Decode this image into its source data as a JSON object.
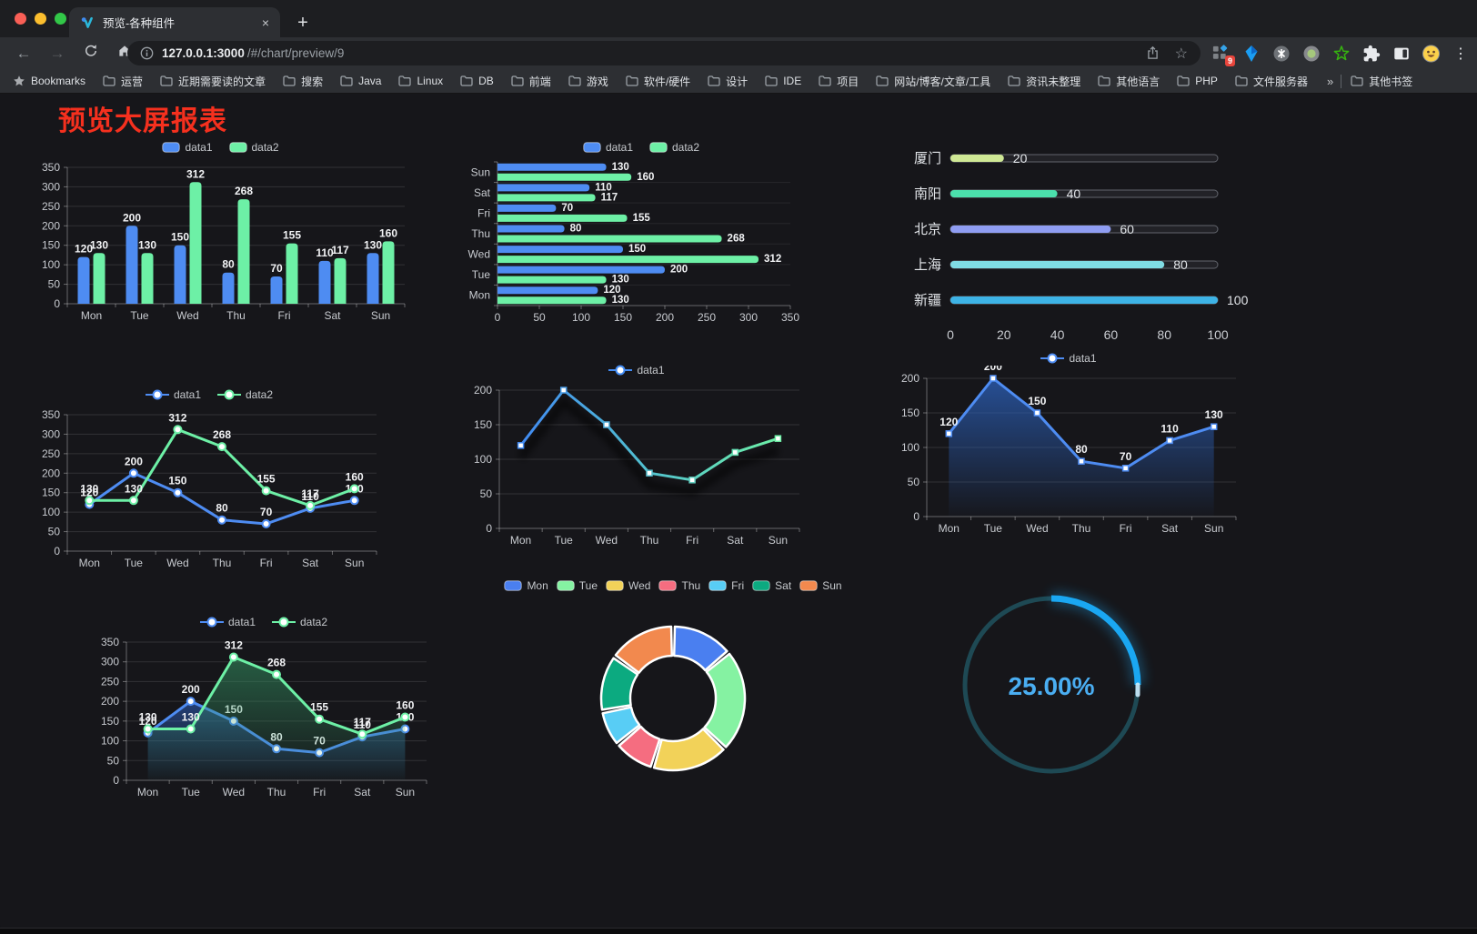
{
  "browser": {
    "tab": {
      "title": "预览-各种组件",
      "close_glyph": "×",
      "new_tab_glyph": "+"
    },
    "url": {
      "host": "127.0.0.1:3000",
      "path": "/#/chart/preview/9"
    },
    "extensions_badge": "9",
    "icons": {
      "back": "←",
      "forward": "→",
      "menu": "⋮",
      "star": "☆"
    },
    "bookmarks": {
      "star_label": "Bookmarks",
      "folders": [
        "运营",
        "近期需要读的文章",
        "搜索",
        "Java",
        "Linux",
        "DB",
        "前端",
        "游戏",
        "软件/硬件",
        "设计",
        "IDE",
        "项目",
        "网站/博客/文章/工具",
        "资讯未整理",
        "其他语言",
        "PHP",
        "文件服务器"
      ],
      "overflow_glyph": "»",
      "other_label": "其他书签"
    }
  },
  "page": {
    "title": "预览大屏报表"
  },
  "colors": {
    "page_bg": "#16161a",
    "chrome_bar": "#2d2f33",
    "frame": "#1d1e21",
    "title_red": "#f5301e",
    "series_blue": "#4e8cf2",
    "series_green": "#6df0a6",
    "axis_text": "#c8cbd0",
    "value_label": "#f2f3f5"
  },
  "chart_data": [
    {
      "id": "bar-grouped",
      "type": "bar",
      "title": "",
      "categories": [
        "Mon",
        "Tue",
        "Wed",
        "Thu",
        "Fri",
        "Sat",
        "Sun"
      ],
      "series": [
        {
          "name": "data1",
          "color": "#4e8cf2",
          "values": [
            120,
            200,
            150,
            80,
            70,
            110,
            130
          ]
        },
        {
          "name": "data2",
          "color": "#6df0a6",
          "values": [
            130,
            130,
            312,
            268,
            155,
            117,
            160
          ]
        }
      ],
      "ylim": [
        0,
        350
      ],
      "ytick": 50,
      "grid": true,
      "legend_position": "top",
      "value_labels": true
    },
    {
      "id": "hbar-grouped",
      "type": "hbar",
      "categories": [
        "Mon",
        "Tue",
        "Wed",
        "Thu",
        "Fri",
        "Sat",
        "Sun"
      ],
      "display_top_to_bottom": [
        "Sun",
        "Sat",
        "Fri",
        "Thu",
        "Wed",
        "Tue",
        "Mon"
      ],
      "series": [
        {
          "name": "data1",
          "color": "#4e8cf2",
          "values": [
            120,
            200,
            150,
            80,
            70,
            110,
            130
          ]
        },
        {
          "name": "data2",
          "color": "#6df0a6",
          "values": [
            130,
            130,
            312,
            268,
            155,
            117,
            160
          ]
        }
      ],
      "xlim": [
        0,
        350
      ],
      "xtick": 50,
      "legend_position": "top",
      "value_labels": true
    },
    {
      "id": "city-progress",
      "type": "progress-bars",
      "max": 100,
      "rows": [
        {
          "label": "厦门",
          "value": 20,
          "color": "#cfe895"
        },
        {
          "label": "南阳",
          "value": 40,
          "color": "#4be0ac"
        },
        {
          "label": "北京",
          "value": 60,
          "color": "#8f9df2"
        },
        {
          "label": "上海",
          "value": 80,
          "color": "#80dce4"
        },
        {
          "label": "新疆",
          "value": 100,
          "color": "#3db3e6"
        }
      ],
      "axis_ticks": [
        0,
        20,
        40,
        60,
        80,
        100
      ]
    },
    {
      "id": "line-two",
      "type": "line",
      "categories": [
        "Mon",
        "Tue",
        "Wed",
        "Thu",
        "Fri",
        "Sat",
        "Sun"
      ],
      "series": [
        {
          "name": "data1",
          "color": "#4e8cf2",
          "marker": "circle",
          "values": [
            120,
            200,
            150,
            80,
            70,
            110,
            130
          ]
        },
        {
          "name": "data2",
          "color": "#6df0a6",
          "marker": "circle",
          "values": [
            130,
            130,
            312,
            268,
            155,
            117,
            160
          ]
        }
      ],
      "ylim": [
        0,
        350
      ],
      "ytick": 50,
      "legend_position": "top",
      "value_labels": true
    },
    {
      "id": "line-gradient",
      "type": "line",
      "shadow": true,
      "categories": [
        "Mon",
        "Tue",
        "Wed",
        "Thu",
        "Fri",
        "Sat",
        "Sun"
      ],
      "series": [
        {
          "name": "data1",
          "gradient": [
            "#418af2",
            "#52c2cf",
            "#6df0a6"
          ],
          "marker": "rect",
          "values": [
            120,
            200,
            150,
            80,
            70,
            110,
            130
          ]
        }
      ],
      "ylim": [
        0,
        200
      ],
      "ytick": 50,
      "legend_position": "top",
      "value_labels": false
    },
    {
      "id": "area-single",
      "type": "line",
      "categories": [
        "Mon",
        "Tue",
        "Wed",
        "Thu",
        "Fri",
        "Sat",
        "Sun"
      ],
      "series": [
        {
          "name": "data1",
          "color": "#4e8cf2",
          "marker": "rect",
          "area": [
            "rgba(44,98,190,0.75)",
            "rgba(44,98,190,0.02)"
          ],
          "values": [
            120,
            200,
            150,
            80,
            70,
            110,
            130
          ]
        }
      ],
      "ylim": [
        0,
        200
      ],
      "ytick": 50,
      "legend_position": "top",
      "value_labels": true
    },
    {
      "id": "area-two",
      "type": "line",
      "categories": [
        "Mon",
        "Tue",
        "Wed",
        "Thu",
        "Fri",
        "Sat",
        "Sun"
      ],
      "series": [
        {
          "name": "data1",
          "color": "#4e8cf2",
          "marker": "circle",
          "area": [
            "rgba(45,92,180,0.6)",
            "rgba(45,92,180,0.02)"
          ],
          "values": [
            120,
            200,
            150,
            80,
            70,
            110,
            130
          ]
        },
        {
          "name": "data2",
          "color": "#6df0a6",
          "marker": "circle",
          "area": [
            "rgba(52,150,100,0.55)",
            "rgba(52,150,100,0.02)"
          ],
          "values": [
            130,
            130,
            312,
            268,
            155,
            117,
            160
          ]
        }
      ],
      "ylim": [
        0,
        350
      ],
      "ytick": 50,
      "legend_position": "top",
      "value_labels": true
    },
    {
      "id": "week-donut",
      "type": "pie",
      "labels": [
        "Mon",
        "Tue",
        "Wed",
        "Thu",
        "Fri",
        "Sat",
        "Sun"
      ],
      "values": [
        120,
        200,
        150,
        80,
        70,
        110,
        130
      ],
      "colors": [
        "#4a7ff0",
        "#85f2a2",
        "#f2d259",
        "#f56d80",
        "#58cdf5",
        "#0caa80",
        "#f2894e"
      ],
      "legend_position": "top",
      "inner_radius": 47,
      "outer_radius": 79
    },
    {
      "id": "percent-gauge",
      "type": "gauge",
      "value": 25,
      "max": 100,
      "label": "25.00%",
      "track_color": "#1e4954",
      "arc_color": "#1aa7f2",
      "text_color": "#4aaef2"
    }
  ]
}
